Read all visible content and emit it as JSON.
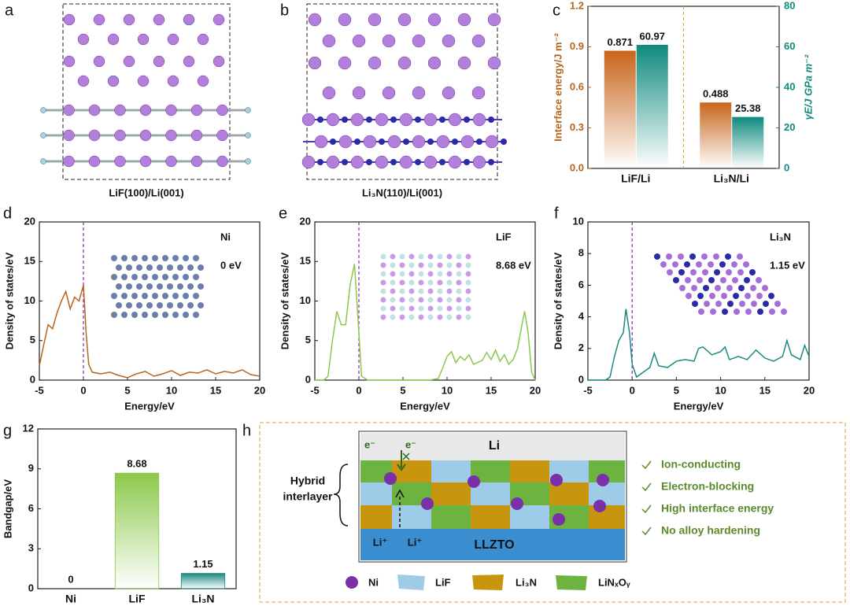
{
  "panels": {
    "labels": [
      "a",
      "b",
      "c",
      "d",
      "e",
      "f",
      "g",
      "h"
    ],
    "captions": [
      "LiF(100)/Li(001)",
      "Li₃N(110)/Li(001)"
    ]
  },
  "chart_data": [
    {
      "type": "bar",
      "categories": [
        "LiF/Li",
        "Li₃N/Li"
      ],
      "ylabel": "Interface energy/J m⁻²",
      "y2label": "γE/J GPa m⁻²",
      "ylim": [
        0,
        1.2
      ],
      "yticks": [
        {
          "value": 0,
          "label": "0.0"
        },
        0.3,
        0.6,
        0.9,
        1.2
      ],
      "y2lim": [
        0,
        80
      ],
      "y2ticks": [
        0,
        20,
        40,
        60,
        80
      ],
      "series": [
        {
          "color": "#c8651b",
          "values": [
            0.871,
            0.488
          ]
        },
        {
          "color": "#0f8a7e",
          "axis": "y2",
          "values": [
            60.97,
            25.38
          ]
        }
      ]
    },
    {
      "type": "line",
      "xlabel": "Energy/eV",
      "ylabel": "Density of states/eV",
      "color": "#b5651d",
      "annotations": [
        "Ni",
        "0 eV"
      ],
      "vline": 0,
      "xlim": [
        -5,
        20
      ],
      "xticks": [
        -5,
        0,
        5,
        10,
        15,
        20
      ],
      "ylim": [
        0,
        20
      ],
      "yticks": [
        0,
        5,
        10,
        15,
        20
      ],
      "x": [
        -5,
        -4.5,
        -4,
        -3.5,
        -3,
        -2.5,
        -2,
        -1.5,
        -1,
        -0.5,
        0,
        0.3,
        0.6,
        1,
        2,
        3,
        4,
        5,
        6,
        7,
        8,
        9,
        10,
        11,
        12,
        13,
        14,
        15,
        16,
        17,
        18,
        19,
        20
      ],
      "values": [
        1.8,
        4.5,
        7,
        6.5,
        8.5,
        10,
        11.2,
        9,
        10.5,
        10,
        12,
        6,
        2,
        1,
        0.8,
        1,
        0.6,
        0.3,
        0.8,
        1.1,
        0.5,
        0.8,
        1.2,
        0.6,
        1,
        0.9,
        1.3,
        0.8,
        1.1,
        0.9,
        1.3,
        0.7,
        0.5
      ]
    },
    {
      "type": "line",
      "xlabel": "Energy/eV",
      "ylabel": "Density of states/eV",
      "color": "#8cc84b",
      "annotations": [
        "LiF",
        "8.68 eV"
      ],
      "vline": 0,
      "xlim": [
        -5,
        20
      ],
      "xticks": [
        -5,
        0,
        5,
        10,
        15,
        20
      ],
      "ylim": [
        0,
        20
      ],
      "yticks": [
        0,
        5,
        10,
        15,
        20
      ],
      "x": [
        -5,
        -4,
        -3.5,
        -3,
        -2.5,
        -2,
        -1.5,
        -1,
        -0.5,
        0,
        0.3,
        1,
        8,
        9,
        9.5,
        10,
        10.5,
        11,
        11.5,
        12,
        12.5,
        13,
        14,
        14.5,
        15,
        15.5,
        16,
        16.5,
        17,
        17.5,
        18,
        18.5,
        18.8,
        19.2,
        19.6,
        20
      ],
      "values": [
        0,
        0,
        0.5,
        5,
        8.7,
        7,
        7,
        12,
        14.7,
        6,
        0.5,
        0,
        0,
        0.2,
        1.5,
        3,
        3.6,
        2.2,
        3,
        2.5,
        3.2,
        2,
        2.5,
        3.5,
        2.6,
        3.8,
        2.4,
        3.2,
        2,
        2.6,
        4,
        7,
        8.7,
        6,
        1,
        0
      ]
    },
    {
      "type": "line",
      "xlabel": "Energy/eV",
      "ylabel": "Density of states/eV",
      "color": "#1a8a80",
      "annotations": [
        "Li₃N",
        "1.15 eV"
      ],
      "vline": 0,
      "xlim": [
        -5,
        20
      ],
      "xticks": [
        -5,
        0,
        5,
        10,
        15,
        20
      ],
      "ylim": [
        0,
        10
      ],
      "yticks": [
        0,
        2,
        4,
        6,
        8,
        10
      ],
      "x": [
        -5,
        -3,
        -2.5,
        -2,
        -1.5,
        -1,
        -0.7,
        -0.3,
        0,
        0.5,
        1,
        2,
        2.5,
        3,
        4,
        5,
        6,
        7,
        7.5,
        8,
        9,
        10,
        10.5,
        11,
        12,
        13,
        14,
        15,
        16,
        17,
        17.5,
        18,
        19,
        19.5,
        20
      ],
      "values": [
        0,
        0,
        0.2,
        1.5,
        2.5,
        3,
        4.5,
        3,
        1,
        0.2,
        0.4,
        0.8,
        1.7,
        0.9,
        0.8,
        1.2,
        1.3,
        1.2,
        2,
        2.1,
        1.6,
        1.8,
        2.1,
        1.3,
        1.5,
        1.3,
        1.9,
        1.4,
        1.2,
        1.5,
        2.5,
        1.6,
        1.3,
        2.2,
        1.5
      ]
    },
    {
      "type": "bar",
      "categories": [
        "Ni",
        "LiF",
        "Li₃N"
      ],
      "ylabel": "Bandgap/eV",
      "ylim": [
        0,
        12
      ],
      "yticks": [
        0,
        3,
        6,
        9,
        12
      ],
      "values": [
        0,
        8.68,
        1.15
      ],
      "colors": [
        "#8a8a8a",
        "#8cc84b",
        "#1a8a80"
      ]
    }
  ],
  "diagram": {
    "top": "Li",
    "bottom": "LLZTO",
    "electrons": [
      "e⁻",
      "e⁻"
    ],
    "ions": [
      "Li⁺",
      "Li⁺"
    ],
    "side_label": [
      "Hybrid",
      "interlayer"
    ],
    "properties": [
      "Ion-conducting",
      "Electron-blocking",
      "High interface energy",
      "No alloy hardening"
    ],
    "legend": [
      "Ni",
      "LiF",
      "Li₃N",
      "LiNₓOᵧ"
    ]
  }
}
